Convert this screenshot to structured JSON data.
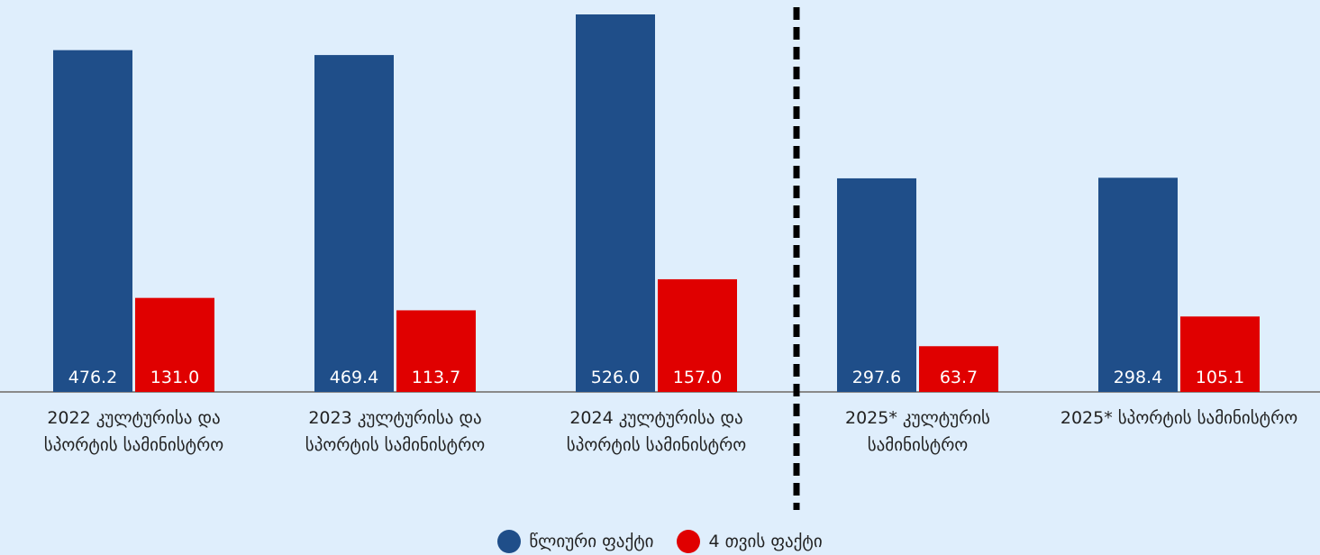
{
  "chart_data": {
    "type": "bar",
    "categories": [
      "2022 კულტურისა და სპორტის სამინისტრო",
      "2023 კულტურისა და სპორტის სამინისტრო",
      "2024 კულტურისა და სპორტის სამინისტრო",
      "2025* კულტურის სამინისტრო",
      "2025* სპორტის სამინისტრო"
    ],
    "series": [
      {
        "name": "წლიური ფაქტი",
        "color": "#1f4e89",
        "values": [
          476.2,
          469.4,
          526.0,
          297.6,
          298.4
        ],
        "value_labels": [
          "476.2",
          "469.4",
          "526.0",
          "297.6",
          "298.4"
        ]
      },
      {
        "name": "4 თვის ფაქტი",
        "color": "#e00000",
        "values": [
          131.0,
          113.7,
          157.0,
          63.7,
          105.1
        ],
        "value_labels": [
          "131.0",
          "113.7",
          "157.0",
          "63.7",
          "105.1"
        ]
      }
    ]
  }
}
